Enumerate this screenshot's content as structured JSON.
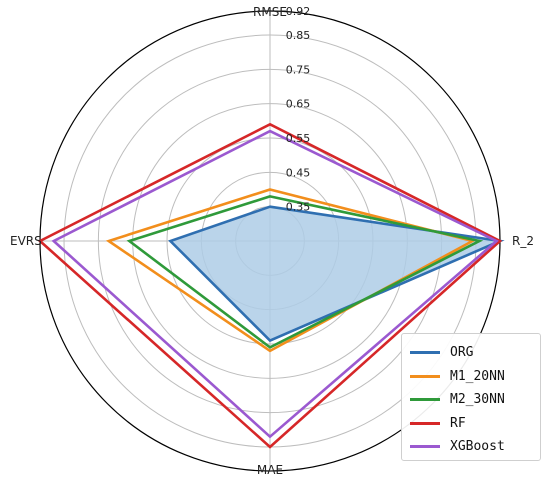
{
  "chart_data": {
    "type": "radar",
    "axes": [
      "RMSE",
      "R_2",
      "MAE",
      "EVRS"
    ],
    "rticks": [
      0.35,
      0.45,
      0.55,
      0.65,
      0.75,
      0.85,
      0.92
    ],
    "rlim": [
      0.25,
      0.92
    ],
    "grid": true,
    "legend_position": "bottom-right",
    "series": [
      {
        "name": "ORG",
        "color": "#2f6fb1",
        "values": [
          0.35,
          0.92,
          0.54,
          0.54
        ],
        "fill": "#aecde6"
      },
      {
        "name": "M1_20NN",
        "color": "#f28e1c",
        "values": [
          0.4,
          0.84,
          0.57,
          0.72
        ]
      },
      {
        "name": "M2_30NN",
        "color": "#2f9a3a",
        "values": [
          0.38,
          0.86,
          0.56,
          0.66
        ]
      },
      {
        "name": "RF",
        "color": "#d62728",
        "values": [
          0.59,
          0.92,
          0.85,
          0.92
        ]
      },
      {
        "name": "XGBoost",
        "color": "#9b59d0",
        "values": [
          0.57,
          0.91,
          0.82,
          0.88
        ]
      }
    ]
  }
}
